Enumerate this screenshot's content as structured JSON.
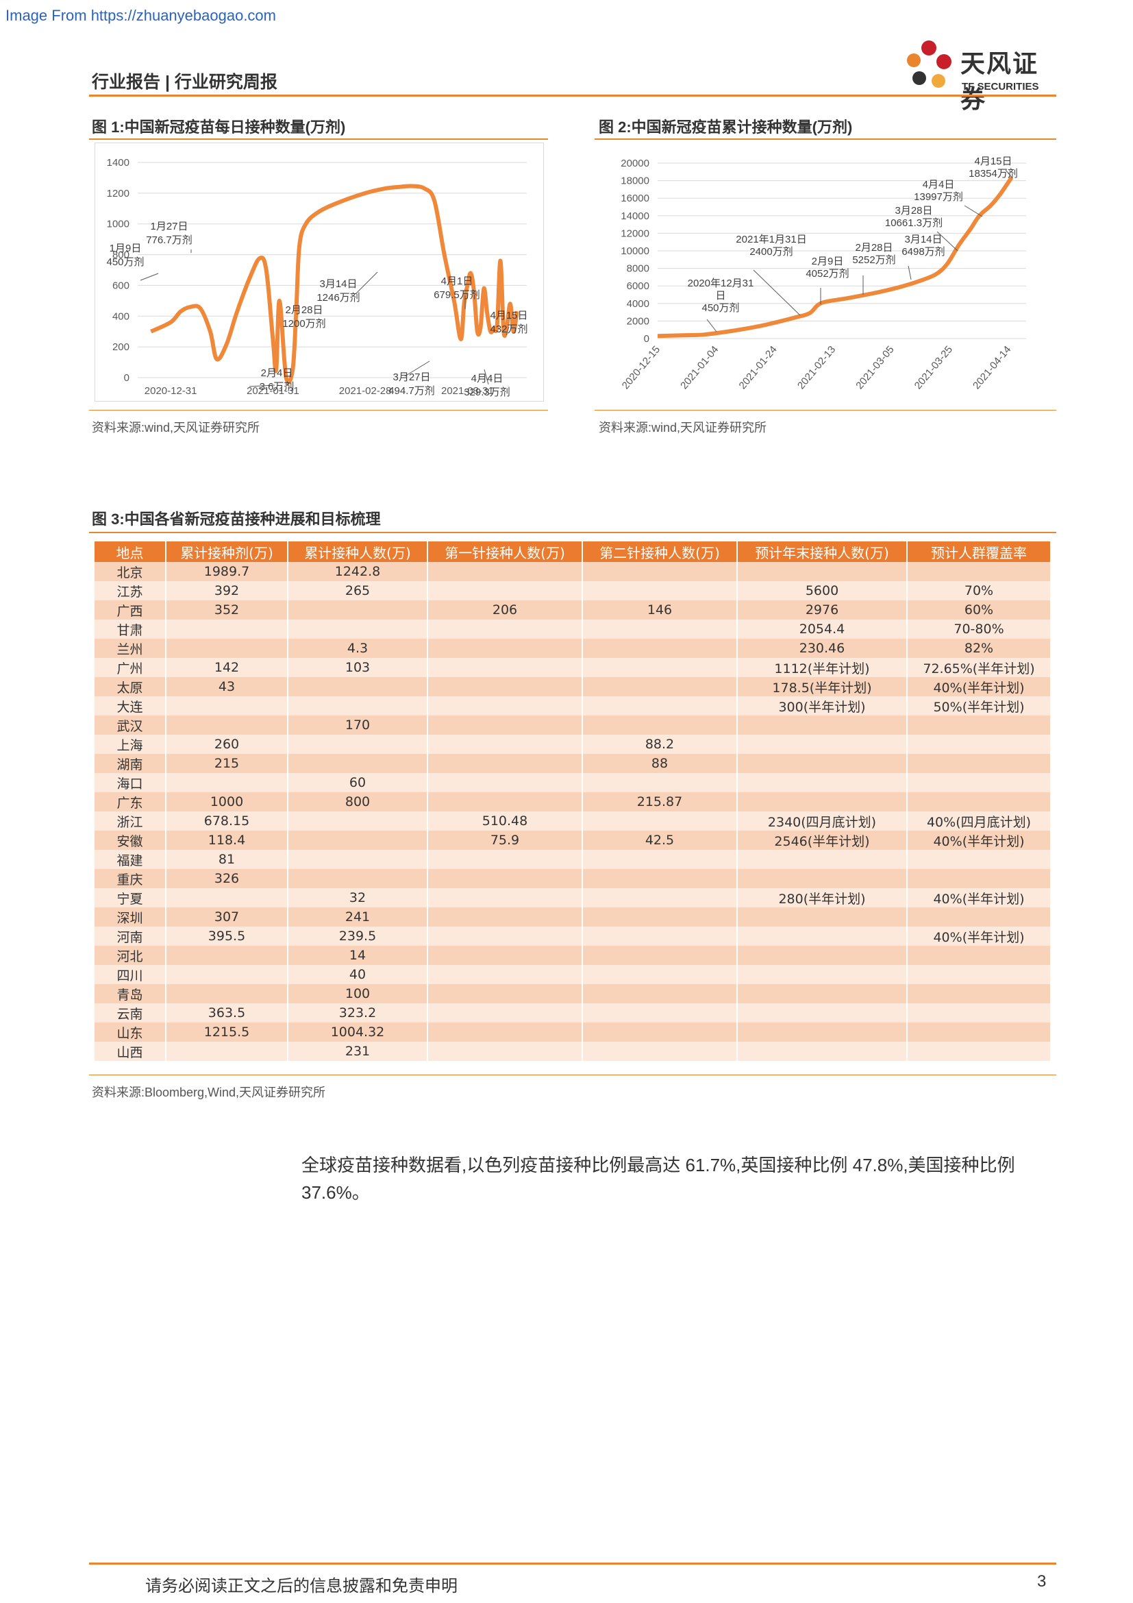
{
  "watermark": "Image From https://zhuanyebaogao.com",
  "header": {
    "title": "行业报告 | 行业研究周报",
    "logo_cn": "天风证券",
    "logo_en": "TF SECURITIES"
  },
  "fig1": {
    "title": "图 1:中国新冠疫苗每日接种数量(万剂)",
    "source": "资料来源:wind,天风证券研究所",
    "annotations": [
      {
        "l1": "1月9日",
        "l2": "450万剂"
      },
      {
        "l1": "1月27日",
        "l2": "776.7万剂"
      },
      {
        "l1": "2月4日",
        "l2": "3.6万剂"
      },
      {
        "l1": "2月28日",
        "l2": "1200万剂"
      },
      {
        "l1": "3月14日",
        "l2": "1246万剂"
      },
      {
        "l1": "3月27日",
        "l2": "494.7万剂"
      },
      {
        "l1": "4月1日",
        "l2": "679.5万剂"
      },
      {
        "l1": "4月4日",
        "l2": "329.3万剂"
      },
      {
        "l1": "4月15日",
        "l2": "432万剂"
      }
    ]
  },
  "fig2": {
    "title": "图 2:中国新冠疫苗累计接种数量(万剂)",
    "source": "资料来源:wind,天风证券研究所",
    "annotations": [
      {
        "l1": "2020年12月31",
        "l2": "日",
        "l3": "450万剂"
      },
      {
        "l1": "2021年1月31日",
        "l2": "2400万剂"
      },
      {
        "l1": "2月9日",
        "l2": "4052万剂"
      },
      {
        "l1": "2月28日",
        "l2": "5252万剂"
      },
      {
        "l1": "3月14日",
        "l2": "6498万剂"
      },
      {
        "l1": "3月28日",
        "l2": "10661.3万剂"
      },
      {
        "l1": "4月4日",
        "l2": "13997万剂"
      },
      {
        "l1": "4月15日",
        "l2": "18354万剂"
      }
    ]
  },
  "chart_data": [
    {
      "type": "line",
      "title": "图 1:中国新冠疫苗每日接种数量(万剂)",
      "ylim": [
        0,
        1400
      ],
      "yticks": [
        0,
        200,
        400,
        600,
        800,
        1000,
        1200,
        1400
      ],
      "xtick_labels": [
        "2020-12-31",
        "2021-01-31",
        "2021-02-28",
        "2021-03-31"
      ],
      "x": [
        "2020-12-25",
        "2020-12-31",
        "2021-01-03",
        "2021-01-06",
        "2021-01-09",
        "2021-01-12",
        "2021-01-14",
        "2021-01-17",
        "2021-01-20",
        "2021-01-24",
        "2021-01-27",
        "2021-01-29",
        "2021-01-31",
        "2021-02-01",
        "2021-02-02",
        "2021-02-04",
        "2021-02-06",
        "2021-02-07",
        "2021-02-08",
        "2021-02-10",
        "2021-02-14",
        "2021-02-20",
        "2021-02-28",
        "2021-03-06",
        "2021-03-10",
        "2021-03-14",
        "2021-03-18",
        "2021-03-21",
        "2021-03-24",
        "2021-03-27",
        "2021-03-29",
        "2021-03-30",
        "2021-03-31",
        "2021-04-01",
        "2021-04-02",
        "2021-04-03",
        "2021-04-04",
        "2021-04-05",
        "2021-04-06",
        "2021-04-07",
        "2021-04-08",
        "2021-04-09",
        "2021-04-10",
        "2021-04-11",
        "2021-04-12",
        "2021-04-13",
        "2021-04-14",
        "2021-04-15"
      ],
      "values": [
        300,
        360,
        430,
        460,
        450,
        300,
        120,
        220,
        420,
        650,
        776.7,
        700,
        250,
        50,
        500,
        3.6,
        50,
        400,
        850,
        1000,
        1080,
        1140,
        1200,
        1230,
        1240,
        1246,
        1230,
        1150,
        800,
        494.7,
        250,
        480,
        600,
        679.5,
        560,
        300,
        329.3,
        580,
        420,
        300,
        320,
        340,
        760,
        300,
        340,
        480,
        300,
        432
      ]
    },
    {
      "type": "line",
      "title": "图 2:中国新冠疫苗累计接种数量(万剂)",
      "ylim": [
        0,
        20000
      ],
      "yticks": [
        0,
        2000,
        4000,
        6000,
        8000,
        10000,
        12000,
        14000,
        16000,
        18000,
        20000
      ],
      "xtick_labels": [
        "2020-12-15",
        "2021-01-04",
        "2021-01-24",
        "2021-02-13",
        "2021-03-05",
        "2021-03-25",
        "2021-04-14"
      ],
      "x": [
        "2020-12-15",
        "2020-12-25",
        "2020-12-31",
        "2021-01-10",
        "2021-01-20",
        "2021-01-31",
        "2021-02-05",
        "2021-02-09",
        "2021-02-18",
        "2021-02-28",
        "2021-03-07",
        "2021-03-14",
        "2021-03-20",
        "2021-03-24",
        "2021-03-28",
        "2021-04-01",
        "2021-04-04",
        "2021-04-08",
        "2021-04-11",
        "2021-04-15"
      ],
      "values": [
        300,
        380,
        450,
        900,
        1500,
        2400,
        2900,
        4052,
        4600,
        5252,
        5800,
        6498,
        7300,
        8500,
        10661.3,
        12500,
        13997,
        15200,
        16400,
        18354
      ]
    }
  ],
  "fig3": {
    "title": "图 3:中国各省新冠疫苗接种进展和目标梳理",
    "source": "资料来源:Bloomberg,Wind,天风证券研究所",
    "columns": [
      "地点",
      "累计接种剂(万)",
      "累计接种人数(万)",
      "第一针接种人数(万)",
      "第二针接种人数(万)",
      "预计年末接种人数(万)",
      "预计人群覆盖率"
    ],
    "rows": [
      [
        "北京",
        "1989.7",
        "1242.8",
        "",
        "",
        "",
        ""
      ],
      [
        "江苏",
        "392",
        "265",
        "",
        "",
        "5600",
        "70%"
      ],
      [
        "广西",
        "352",
        "",
        "206",
        "146",
        "2976",
        "60%"
      ],
      [
        "甘肃",
        "",
        "",
        "",
        "",
        "2054.4",
        "70-80%"
      ],
      [
        "兰州",
        "",
        "4.3",
        "",
        "",
        "230.46",
        "82%"
      ],
      [
        "广州",
        "142",
        "103",
        "",
        "",
        "1112(半年计划)",
        "72.65%(半年计划)"
      ],
      [
        "太原",
        "43",
        "",
        "",
        "",
        "178.5(半年计划)",
        "40%(半年计划)"
      ],
      [
        "大连",
        "",
        "",
        "",
        "",
        "300(半年计划)",
        "50%(半年计划)"
      ],
      [
        "武汉",
        "",
        "170",
        "",
        "",
        "",
        ""
      ],
      [
        "上海",
        "260",
        "",
        "",
        "88.2",
        "",
        ""
      ],
      [
        "湖南",
        "215",
        "",
        "",
        "88",
        "",
        ""
      ],
      [
        "海口",
        "",
        "60",
        "",
        "",
        "",
        ""
      ],
      [
        "广东",
        "1000",
        "800",
        "",
        "215.87",
        "",
        ""
      ],
      [
        "浙江",
        "678.15",
        "",
        "510.48",
        "",
        "2340(四月底计划)",
        "40%(四月底计划)"
      ],
      [
        "安徽",
        "118.4",
        "",
        "75.9",
        "42.5",
        "2546(半年计划)",
        "40%(半年计划)"
      ],
      [
        "福建",
        "81",
        "",
        "",
        "",
        "",
        ""
      ],
      [
        "重庆",
        "326",
        "",
        "",
        "",
        "",
        ""
      ],
      [
        "宁夏",
        "",
        "32",
        "",
        "",
        "280(半年计划)",
        "40%(半年计划)"
      ],
      [
        "深圳",
        "307",
        "241",
        "",
        "",
        "",
        ""
      ],
      [
        "河南",
        "395.5",
        "239.5",
        "",
        "",
        "",
        "40%(半年计划)"
      ],
      [
        "河北",
        "",
        "14",
        "",
        "",
        "",
        ""
      ],
      [
        "四川",
        "",
        "40",
        "",
        "",
        "",
        ""
      ],
      [
        "青岛",
        "",
        "100",
        "",
        "",
        "",
        ""
      ],
      [
        "云南",
        "363.5",
        "323.2",
        "",
        "",
        "",
        ""
      ],
      [
        "山东",
        "1215.5",
        "1004.32",
        "",
        "",
        "",
        ""
      ],
      [
        "山西",
        "",
        "231",
        "",
        "",
        "",
        ""
      ]
    ]
  },
  "body_text": "全球疫苗接种数据看,以色列疫苗接种比例最高达 61.7%,英国接种比例 47.8%,美国接种比例 37.6%。",
  "footer": {
    "disclaimer": "请务必阅读正文之后的信息披露和免责申明",
    "page": "3"
  },
  "colors": {
    "accent": "#e8852d",
    "line": "#f0883a",
    "table_header": "#ea7b2f",
    "row_dark": "#f8d3b9",
    "row_light": "#fce9dc"
  }
}
